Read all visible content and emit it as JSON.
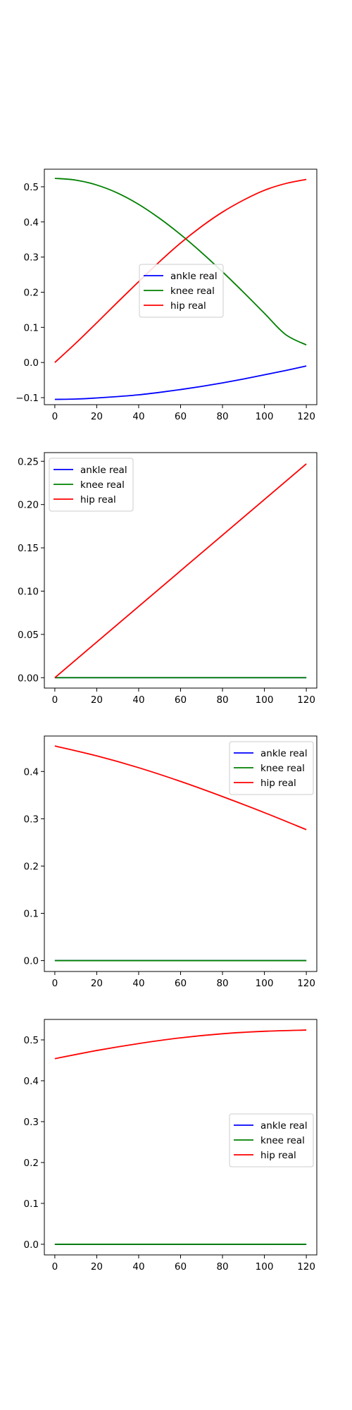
{
  "figure": {
    "background": "#ffffff",
    "series_colors": {
      "ankle real": "#0000ff",
      "knee real": "#008000",
      "hip real": "#ff0000"
    }
  },
  "chart_data": [
    {
      "type": "line",
      "title": "",
      "xlabel": "",
      "ylabel": "",
      "xlim": [
        -5,
        125
      ],
      "ylim": [
        -0.12,
        0.55
      ],
      "xticks": [
        0,
        20,
        40,
        60,
        80,
        100,
        120
      ],
      "yticks": [
        -0.1,
        0.0,
        0.1,
        0.2,
        0.3,
        0.4,
        0.5
      ],
      "xtick_labels": [
        "0",
        "20",
        "40",
        "60",
        "80",
        "100",
        "120"
      ],
      "ytick_labels": [
        "−0.1",
        "0.0",
        "0.1",
        "0.2",
        "0.3",
        "0.4",
        "0.5"
      ],
      "grid": false,
      "legend_position": "center",
      "x": [
        0,
        10,
        20,
        30,
        40,
        50,
        60,
        70,
        80,
        90,
        100,
        110,
        120
      ],
      "series": [
        {
          "name": "ankle real",
          "color": "#0000ff",
          "values": [
            -0.105,
            -0.104,
            -0.101,
            -0.097,
            -0.092,
            -0.085,
            -0.077,
            -0.068,
            -0.058,
            -0.047,
            -0.035,
            -0.023,
            -0.01
          ]
        },
        {
          "name": "knee real",
          "color": "#008000",
          "values": [
            0.524,
            0.519,
            0.505,
            0.482,
            0.45,
            0.41,
            0.364,
            0.313,
            0.258,
            0.2,
            0.14,
            0.08,
            0.05
          ]
        },
        {
          "name": "hip real",
          "color": "#ff0000",
          "values": [
            0.0,
            0.055,
            0.113,
            0.172,
            0.23,
            0.287,
            0.34,
            0.387,
            0.428,
            0.462,
            0.49,
            0.509,
            0.521
          ]
        }
      ]
    },
    {
      "type": "line",
      "title": "",
      "xlabel": "",
      "ylabel": "",
      "xlim": [
        -5,
        125
      ],
      "ylim": [
        -0.012,
        0.26
      ],
      "xticks": [
        0,
        20,
        40,
        60,
        80,
        100,
        120
      ],
      "yticks": [
        0.0,
        0.05,
        0.1,
        0.15,
        0.2,
        0.25
      ],
      "xtick_labels": [
        "0",
        "20",
        "40",
        "60",
        "80",
        "100",
        "120"
      ],
      "ytick_labels": [
        "0.00",
        "0.05",
        "0.10",
        "0.15",
        "0.20",
        "0.25"
      ],
      "grid": false,
      "legend_position": "upper left",
      "x": [
        0,
        120
      ],
      "series": [
        {
          "name": "ankle real",
          "color": "#0000ff",
          "values": [
            0.0,
            0.0
          ]
        },
        {
          "name": "knee real",
          "color": "#008000",
          "values": [
            0.0,
            0.0
          ]
        },
        {
          "name": "hip real",
          "color": "#ff0000",
          "values": [
            0.0,
            0.247
          ]
        }
      ]
    },
    {
      "type": "line",
      "title": "",
      "xlabel": "",
      "ylabel": "",
      "xlim": [
        -5,
        125
      ],
      "ylim": [
        -0.023,
        0.475
      ],
      "xticks": [
        0,
        20,
        40,
        60,
        80,
        100,
        120
      ],
      "yticks": [
        0.0,
        0.1,
        0.2,
        0.3,
        0.4
      ],
      "xtick_labels": [
        "0",
        "20",
        "40",
        "60",
        "80",
        "100",
        "120"
      ],
      "ytick_labels": [
        "0.0",
        "0.1",
        "0.2",
        "0.3",
        "0.4"
      ],
      "grid": false,
      "legend_position": "upper right",
      "x": [
        0,
        20,
        40,
        60,
        80,
        100,
        120
      ],
      "series": [
        {
          "name": "ankle real",
          "color": "#0000ff",
          "values": [
            0.0,
            0.0,
            0.0,
            0.0,
            0.0,
            0.0,
            0.0
          ]
        },
        {
          "name": "knee real",
          "color": "#008000",
          "values": [
            0.0,
            0.0,
            0.0,
            0.0,
            0.0,
            0.0,
            0.0
          ]
        },
        {
          "name": "hip real",
          "color": "#ff0000",
          "values": [
            0.454,
            0.433,
            0.408,
            0.379,
            0.347,
            0.313,
            0.277
          ]
        }
      ]
    },
    {
      "type": "line",
      "title": "",
      "xlabel": "",
      "ylabel": "",
      "xlim": [
        -5,
        125
      ],
      "ylim": [
        -0.026,
        0.55
      ],
      "xticks": [
        0,
        20,
        40,
        60,
        80,
        100,
        120
      ],
      "yticks": [
        0.0,
        0.1,
        0.2,
        0.3,
        0.4,
        0.5
      ],
      "xtick_labels": [
        "0",
        "20",
        "40",
        "60",
        "80",
        "100",
        "120"
      ],
      "ytick_labels": [
        "0.0",
        "0.1",
        "0.2",
        "0.3",
        "0.4",
        "0.5"
      ],
      "grid": false,
      "legend_position": "center right",
      "x": [
        0,
        20,
        40,
        60,
        80,
        100,
        120
      ],
      "series": [
        {
          "name": "ankle real",
          "color": "#0000ff",
          "values": [
            0.0,
            0.0,
            0.0,
            0.0,
            0.0,
            0.0,
            0.0
          ]
        },
        {
          "name": "knee real",
          "color": "#008000",
          "values": [
            0.0,
            0.0,
            0.0,
            0.0,
            0.0,
            0.0,
            0.0
          ]
        },
        {
          "name": "hip real",
          "color": "#ff0000",
          "values": [
            0.454,
            0.474,
            0.491,
            0.505,
            0.515,
            0.521,
            0.524
          ]
        }
      ]
    }
  ]
}
